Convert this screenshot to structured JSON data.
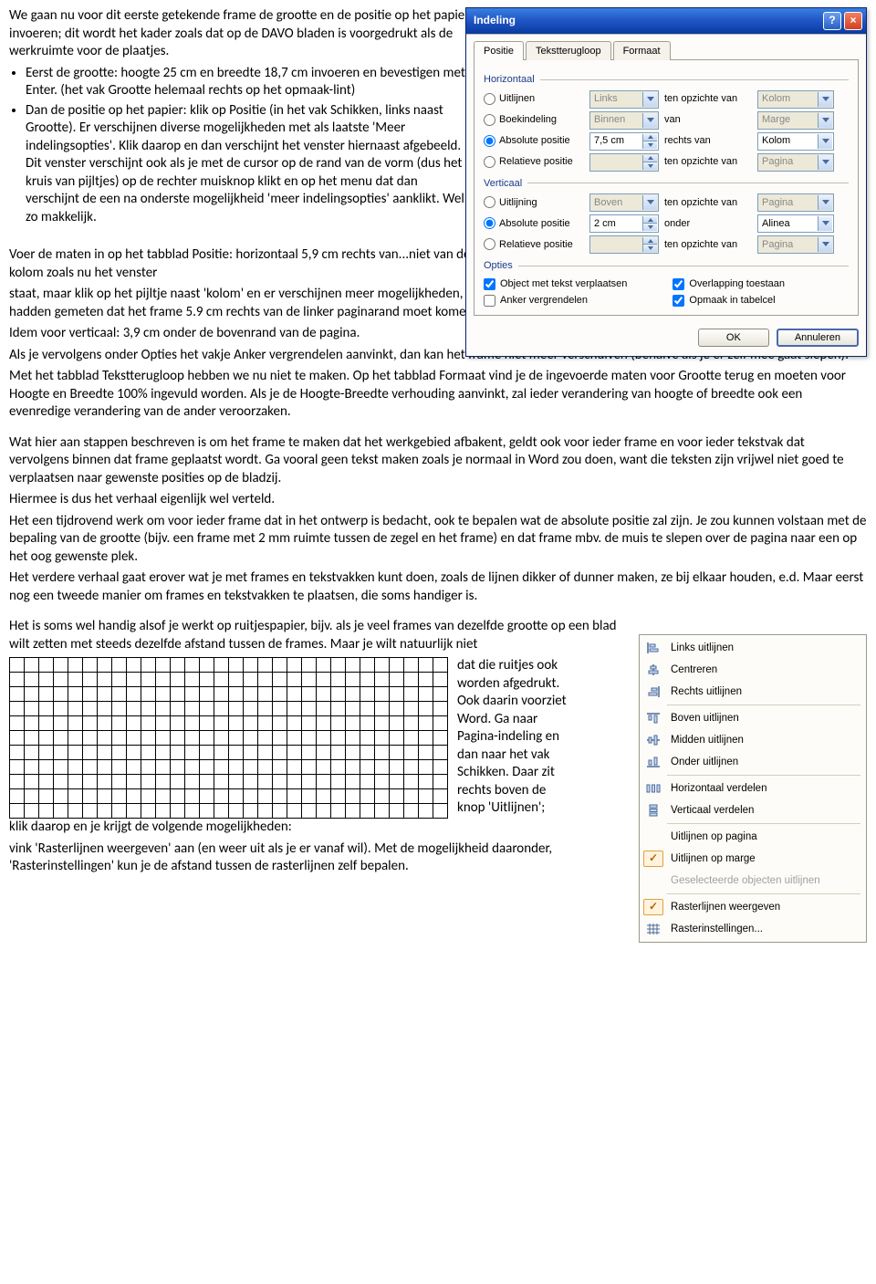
{
  "doc": {
    "intro": "We gaan nu voor dit eerste getekende frame de grootte en de positie op het papier invoeren; dit wordt het kader zoals dat op de DAVO bladen is voorgedrukt als de werkruimte voor de plaatjes.",
    "bullet1": "Eerst de grootte: hoogte 25 cm en breedte 18,7 cm invoeren en bevestigen met Enter. (het vak Grootte helemaal rechts op het opmaak-lint)",
    "bullet2": "Dan de positie op het papier: klik op Positie (in het vak Schikken, links naast Grootte). Er verschijnen diverse mogelijkheden met als laatste 'Meer indelingsopties'. Klik daarop en dan verschijnt het venster hiernaast afgebeeld.",
    "bullet2b": "Dit venster verschijnt ook als je met de cursor op de rand van de vorm (dus het kruis van pijltjes) op de rechter muisknop klikt en op het menu dat dan verschijnt de een na onderste mogelijkheid 'meer indelingsopties' aanklikt. Wel zo makkelijk.",
    "para2": "Voer de maten in op het tabblad Positie: horizontaal 5,9 cm rechts van...niet van de kolom zoals nu het venster staat, maar klik op het pijltje naast 'kolom' en er verschijnen meer mogelijkheden, waarvan 'pagina' er ook een is. Die moeten we hebben, want we hadden gemeten dat het frame 5.9 cm rechts van de linker paginarand moet komen.",
    "para3": "Idem voor verticaal: 3,9 cm onder de bovenrand van de pagina.",
    "para4": "Als je vervolgens onder Opties het vakje Anker vergrendelen aanvinkt, dan kan het frame niet meer verschuiven (behalve als je er zelf mee gaat slepen).",
    "para5": "Met het tabblad Tekstterugloop hebben we nu niet te maken. Op het tabblad Formaat vind je de ingevoerde maten voor Grootte terug en moeten voor Hoogte en Breedte 100% ingevuld worden. Als je de Hoogte-Breedte verhouding aanvinkt, zal ieder verandering van hoogte of breedte ook een evenredige verandering van de ander veroorzaken.",
    "para6": "Wat hier aan stappen beschreven is om het frame te maken dat het werkgebied afbakent, geldt ook voor ieder frame en voor ieder tekstvak dat vervolgens binnen dat frame geplaatst wordt. Ga vooral geen tekst maken zoals je normaal in Word zou doen, want die teksten zijn vrijwel niet goed te verplaatsen naar gewenste posities op de bladzij.",
    "para7": "Hiermee is dus het verhaal eigenlijk wel verteld.",
    "para8": "Het een tijdrovend werk om voor ieder frame dat in het ontwerp is bedacht, ook te bepalen wat de absolute positie zal zijn. Je zou kunnen volstaan met de bepaling van de grootte (bijv. een frame met 2 mm ruimte tussen de zegel en het frame) en dat frame mbv. de muis te slepen over de pagina naar een op het oog gewenste plek.",
    "para9": "Het verdere verhaal gaat erover wat je met frames en tekstvakken kunt doen, zoals de lijnen dikker of dunner maken,  ze bij elkaar houden, e.d. Maar eerst nog een tweede manier om frames en tekstvakken te plaatsen, die soms handiger is.",
    "para10a": "Het is soms wel handig alsof je werkt op ruitjespapier, bijv. als je veel frames van dezelfde grootte op een blad wilt zetten met steeds dezelfde afstand tussen de frames. Maar je wilt natuurlijk niet",
    "para10b": "dat die ruitjes ook worden afgedrukt. Ook daarin voorziet Word.  Ga naar Pagina-indeling en dan naar het vak Schikken. Daar zit rechts boven de knop 'Uitlijnen';",
    "para11": "klik daarop en je krijgt de volgende mogelijkheden:",
    "para12": "vink 'Rasterlijnen weergeven' aan (en weer uit als je er vanaf wil). Met de mogelijkheid daaronder, 'Rasterinstellingen' kun je de afstand tussen de rasterlijnen zelf bepalen."
  },
  "grid": {
    "rows": 11,
    "cols": 30
  },
  "dialog": {
    "title": "Indeling",
    "tabs": {
      "t1": "Positie",
      "t2": "Tekstterugloop",
      "t3": "Formaat"
    },
    "groups": {
      "horiz": "Horizontaal",
      "vert": "Verticaal",
      "opts": "Opties"
    },
    "h": {
      "r1_label": "Uitlijnen",
      "r1_val": "Links",
      "r1_mid": "ten opzichte van",
      "r1_ref": "Kolom",
      "r2_label": "Boekindeling",
      "r2_val": "Binnen",
      "r2_mid": "van",
      "r2_ref": "Marge",
      "r3_label": "Absolute positie",
      "r3_val": "7,5 cm",
      "r3_mid": "rechts van",
      "r3_ref": "Kolom",
      "r4_label": "Relatieve positie",
      "r4_val": "",
      "r4_mid": "ten opzichte van",
      "r4_ref": "Pagina"
    },
    "v": {
      "r1_label": "Uitlijning",
      "r1_val": "Boven",
      "r1_mid": "ten opzichte van",
      "r1_ref": "Pagina",
      "r2_label": "Absolute positie",
      "r2_val": "2 cm",
      "r2_mid": "onder",
      "r2_ref": "Alinea",
      "r3_label": "Relatieve positie",
      "r3_val": "",
      "r3_mid": "ten opzichte van",
      "r3_ref": "Pagina"
    },
    "opts": {
      "c1": "Object met tekst verplaatsen",
      "c2": "Anker vergrendelen",
      "c3": "Overlapping toestaan",
      "c4": "Opmaak in tabelcel"
    },
    "buttons": {
      "ok": "OK",
      "cancel": "Annuleren"
    }
  },
  "menu": {
    "i1": "Links uitlijnen",
    "i2": "Centreren",
    "i3": "Rechts uitlijnen",
    "i4": "Boven uitlijnen",
    "i5": "Midden uitlijnen",
    "i6": "Onder uitlijnen",
    "i7": "Horizontaal verdelen",
    "i8": "Verticaal verdelen",
    "i9": "Uitlijnen op pagina",
    "i10": "Uitlijnen op marge",
    "i11": "Geselecteerde objecten uitlijnen",
    "i12": "Rasterlijnen weergeven",
    "i13": "Rasterinstellingen..."
  }
}
